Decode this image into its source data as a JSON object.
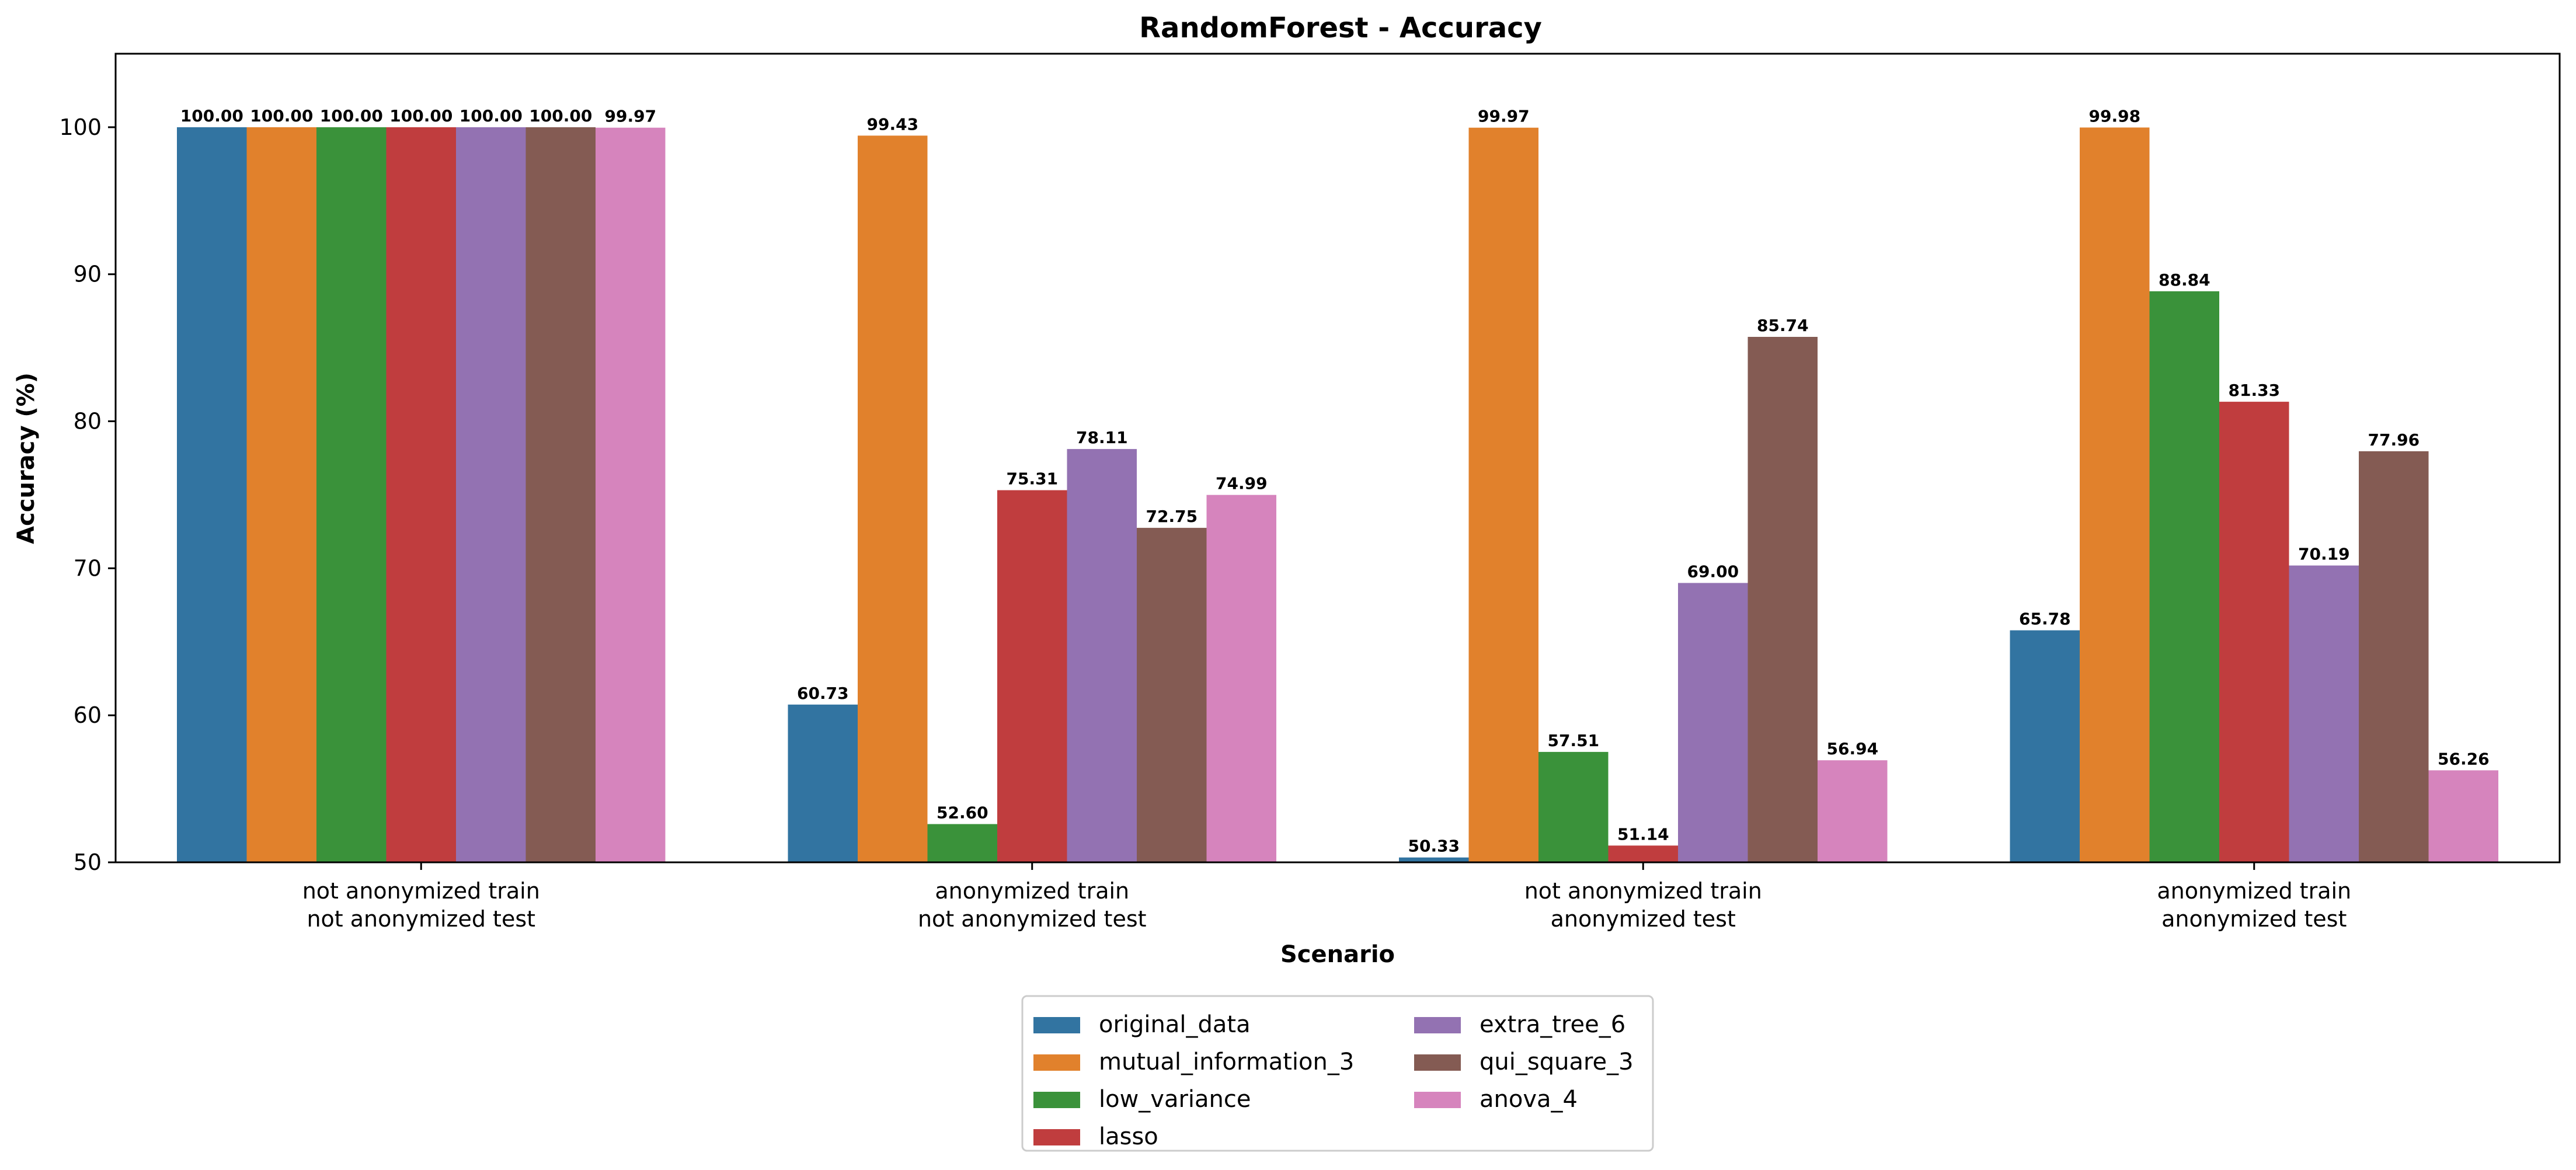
{
  "chart_data": {
    "type": "bar",
    "title": "RandomForest - Accuracy",
    "xlabel": "Scenario",
    "ylabel": "Accuracy (%)",
    "ylim": [
      50,
      105
    ],
    "yticks": [
      50,
      60,
      70,
      80,
      90,
      100
    ],
    "grid": false,
    "legend_position": "bottom-center",
    "categories": [
      [
        "not anonymized train",
        "not anonymized test"
      ],
      [
        "anonymized train",
        "not anonymized test"
      ],
      [
        "not anonymized train",
        "anonymized test"
      ],
      [
        "anonymized train",
        "anonymized test"
      ]
    ],
    "series": [
      {
        "name": "original_data",
        "color": "#3274a1",
        "values": [
          100.0,
          60.73,
          50.33,
          65.78
        ],
        "labels": [
          "100.00",
          "60.73",
          "50.33",
          "65.78"
        ]
      },
      {
        "name": "mutual_information_3",
        "color": "#e1812c",
        "values": [
          100.0,
          99.43,
          99.97,
          99.98
        ],
        "labels": [
          "100.00",
          "99.43",
          "99.97",
          "99.98"
        ]
      },
      {
        "name": "low_variance",
        "color": "#3a923a",
        "values": [
          100.0,
          52.6,
          57.51,
          88.84
        ],
        "labels": [
          "100.00",
          "52.60",
          "57.51",
          "88.84"
        ]
      },
      {
        "name": "lasso",
        "color": "#c03d3e",
        "values": [
          100.0,
          75.31,
          51.14,
          81.33
        ],
        "labels": [
          "100.00",
          "75.31",
          "51.14",
          "81.33"
        ]
      },
      {
        "name": "extra_tree_6",
        "color": "#9372b2",
        "values": [
          100.0,
          78.11,
          69.0,
          70.19
        ],
        "labels": [
          "100.00",
          "78.11",
          "69.00",
          "70.19"
        ]
      },
      {
        "name": "qui_square_3",
        "color": "#845b53",
        "values": [
          100.0,
          72.75,
          85.74,
          77.96
        ],
        "labels": [
          "100.00",
          "72.75",
          "85.74",
          "77.96"
        ]
      },
      {
        "name": "anova_4",
        "color": "#d684bd",
        "values": [
          99.97,
          74.99,
          56.94,
          56.26
        ],
        "labels": [
          "99.97",
          "74.99",
          "56.94",
          "56.26"
        ]
      }
    ]
  }
}
